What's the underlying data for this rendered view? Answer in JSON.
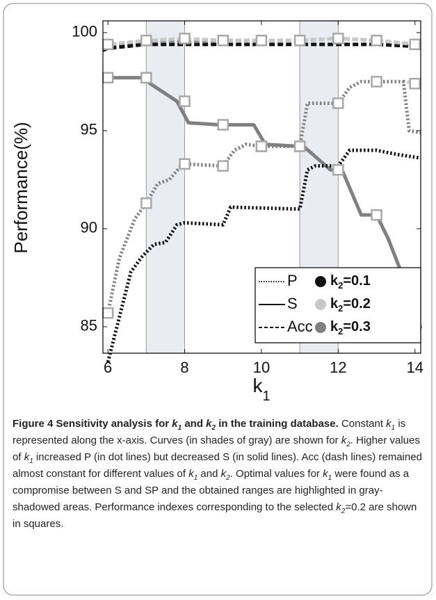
{
  "chart_data": {
    "type": "line",
    "ylabel": "Performance(%)",
    "xlabel": {
      "main": "k",
      "sub": "1"
    },
    "xlim": [
      5.87,
      14.15
    ],
    "ylim": [
      83.65,
      100.6
    ],
    "xticks": [
      6,
      8,
      10,
      12,
      14
    ],
    "yticks": [
      85,
      90,
      95,
      100
    ],
    "highlight_ranges": [
      [
        7,
        8
      ],
      [
        11,
        12
      ]
    ],
    "highlight_color": "#e9ecf1",
    "series": [
      {
        "dash": "dashed",
        "color": "#808080",
        "x": [
          5.87,
          6,
          7,
          8,
          9,
          10,
          11,
          12,
          13,
          14,
          14.15
        ],
        "values": [
          99.2,
          99.3,
          99.6,
          99.6,
          99.6,
          99.6,
          99.6,
          99.7,
          99.6,
          99.4,
          99.3
        ]
      },
      {
        "dash": "dashed",
        "color": "#111111",
        "x": [
          5.87,
          6,
          7,
          8,
          9,
          10,
          11,
          12,
          13,
          14,
          14.15
        ],
        "values": [
          99.1,
          99.2,
          99.4,
          99.4,
          99.4,
          99.4,
          99.4,
          99.4,
          99.4,
          99.3,
          99.2
        ]
      },
      {
        "dash": "dashed",
        "color": "#c8c8c8",
        "x": [
          5.87,
          6,
          7,
          8,
          9,
          10,
          11,
          12,
          13,
          14,
          14.15
        ],
        "values": [
          99.3,
          99.4,
          99.6,
          99.7,
          99.6,
          99.6,
          99.6,
          99.7,
          99.6,
          99.4,
          99.3
        ]
      },
      {
        "dash": "solid",
        "color": "#808080",
        "x": [
          5.87,
          6,
          6.9,
          7.1,
          7.8,
          8.1,
          8.9,
          9.1,
          9.8,
          10.1,
          11,
          11.1,
          11.8,
          12.1,
          12.6,
          13,
          13.3,
          13.6,
          13.95,
          14.15
        ],
        "values": [
          97.7,
          97.7,
          97.7,
          97.4,
          96.5,
          95.4,
          95.3,
          95.3,
          95.3,
          94.3,
          94.2,
          94.2,
          93.0,
          93.0,
          90.7,
          90.7,
          89.5,
          88.0,
          86.1,
          84.9
        ]
      },
      {
        "dash": "dotted",
        "color": "#c8c8c8",
        "x": [
          13.7,
          14.15
        ],
        "values": [
          97.5,
          97.4
        ]
      },
      {
        "dash": "dotted",
        "color": "#808080",
        "x": [
          6,
          6.3,
          6.7,
          7,
          7.3,
          7.6,
          7.9,
          8,
          9,
          9.3,
          9.6,
          10,
          11,
          11.2,
          12,
          12.3,
          12.6,
          13,
          13.7,
          13.85,
          14.15
        ],
        "values": [
          85.7,
          88.5,
          90.5,
          91.3,
          92.3,
          92.5,
          93.2,
          93.3,
          93.2,
          94.0,
          94.3,
          94.2,
          94.2,
          96.4,
          96.4,
          97.2,
          97.5,
          97.5,
          97.5,
          95.0,
          94.9
        ]
      },
      {
        "dash": "dotted",
        "color": "#111111",
        "x": [
          6,
          6.3,
          6.6,
          6.9,
          7.2,
          7.5,
          7.8,
          8,
          9,
          9.2,
          11,
          11.2,
          11.4,
          12,
          12.3,
          13,
          13.5,
          14.15
        ],
        "values": [
          83.2,
          85.5,
          87.8,
          88.6,
          89.2,
          89.3,
          90.2,
          90.3,
          90.2,
          91.1,
          91.0,
          93.0,
          93.2,
          93.2,
          94.0,
          94.0,
          93.8,
          93.6
        ]
      },
      {
        "marker": "square",
        "color": "#a8a8a8",
        "x": [
          6,
          7,
          8,
          9,
          10,
          11,
          12,
          13,
          14
        ],
        "values": [
          99.4,
          99.6,
          99.7,
          99.6,
          99.6,
          99.6,
          99.7,
          99.6,
          99.4
        ]
      },
      {
        "marker": "square",
        "color": "#a8a8a8",
        "x": [
          6,
          7,
          8,
          9,
          10,
          11,
          12,
          13,
          14
        ],
        "values": [
          97.7,
          97.7,
          96.5,
          95.3,
          94.2,
          94.2,
          93.0,
          90.7,
          86.1
        ]
      },
      {
        "marker": "square",
        "color": "#a8a8a8",
        "x": [
          6,
          7,
          8,
          9,
          10,
          11,
          12,
          13,
          14
        ],
        "values": [
          85.7,
          91.3,
          93.3,
          93.2,
          94.2,
          94.2,
          96.4,
          97.5,
          97.4
        ]
      }
    ],
    "legend": {
      "styles": [
        {
          "label": "P",
          "dash": "dotted"
        },
        {
          "label": "S",
          "dash": "solid"
        },
        {
          "label": "Acc",
          "dash": "dashed"
        }
      ],
      "colors": [
        {
          "k": "k",
          "sub": "2",
          "rest": "=0.1",
          "color": "#111111"
        },
        {
          "k": "k",
          "sub": "2",
          "rest": "=0.2",
          "color": "#c8c8c8"
        },
        {
          "k": "k",
          "sub": "2",
          "rest": "=0.3",
          "color": "#808080"
        }
      ]
    }
  },
  "caption": [
    {
      "t": "Figure 4 Sensitivity analysis for ",
      "style": "b"
    },
    {
      "t": "k",
      "style": "bi"
    },
    {
      "t": "1",
      "style": "bis"
    },
    {
      "t": " and ",
      "style": "b"
    },
    {
      "t": "k",
      "style": "bi"
    },
    {
      "t": "2",
      "style": "bis"
    },
    {
      "t": " in the training database.",
      "style": "b"
    },
    {
      "t": " Constant ",
      "style": ""
    },
    {
      "t": "k",
      "style": "i"
    },
    {
      "t": "1",
      "style": "is"
    },
    {
      "t": " is represented along the x-axis. Curves (in shades of gray) are shown for ",
      "style": ""
    },
    {
      "t": "k",
      "style": "i"
    },
    {
      "t": "2",
      "style": "is"
    },
    {
      "t": ". Higher values of ",
      "style": ""
    },
    {
      "t": "k",
      "style": "i"
    },
    {
      "t": "1",
      "style": "is"
    },
    {
      "t": " increased P (in dot lines) but decreased S (in solid lines). Acc (dash lines) remained almost constant for different values of ",
      "style": ""
    },
    {
      "t": "k",
      "style": "i"
    },
    {
      "t": "1",
      "style": "is"
    },
    {
      "t": " and ",
      "style": ""
    },
    {
      "t": "k",
      "style": "i"
    },
    {
      "t": "2",
      "style": "is"
    },
    {
      "t": ". Optimal values for ",
      "style": ""
    },
    {
      "t": "k",
      "style": "i"
    },
    {
      "t": "1",
      "style": "is"
    },
    {
      "t": " were found as a compromise between S and SP and the obtained ranges are highlighted in gray-shadowed areas. Performance indexes corresponding to the selected ",
      "style": ""
    },
    {
      "t": "k",
      "style": "i"
    },
    {
      "t": "2",
      "style": "is"
    },
    {
      "t": "=0.2 are shown in squares.",
      "style": ""
    }
  ]
}
